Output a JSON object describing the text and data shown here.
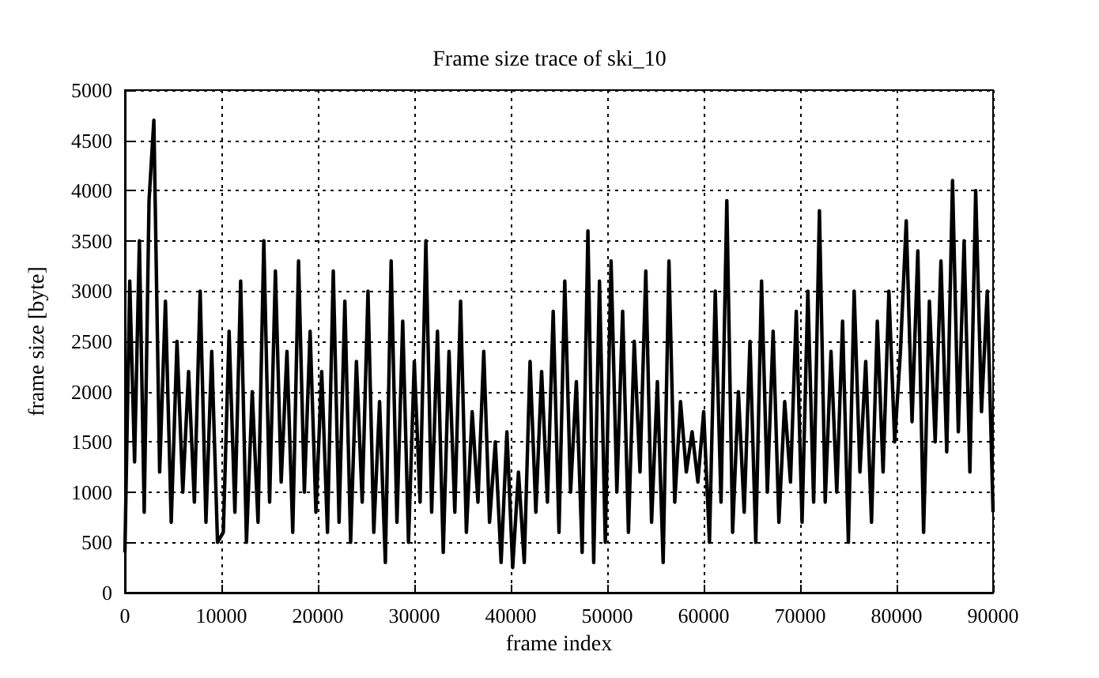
{
  "chart_data": {
    "type": "line",
    "title": "Frame size trace of ski_10",
    "xlabel": "frame index",
    "ylabel": "frame size [byte]",
    "x": [
      0,
      500,
      1000,
      1500,
      2000,
      2500,
      3000,
      3600,
      4200,
      4800,
      5400,
      6000,
      6600,
      7200,
      7800,
      8400,
      9000,
      9600,
      10200,
      10800,
      11400,
      12000,
      12600,
      13200,
      13800,
      14400,
      15000,
      15600,
      16200,
      16800,
      17400,
      18000,
      18600,
      19200,
      19800,
      20400,
      21000,
      21600,
      22200,
      22800,
      23400,
      24000,
      24600,
      25200,
      25800,
      26400,
      27000,
      27600,
      28200,
      28800,
      29400,
      30000,
      30600,
      31200,
      31800,
      32400,
      33000,
      33600,
      34200,
      34800,
      35400,
      36000,
      36600,
      37200,
      37800,
      38400,
      39000,
      39600,
      40200,
      40800,
      41400,
      42000,
      42600,
      43200,
      43800,
      44400,
      45000,
      45600,
      46200,
      46800,
      47400,
      48000,
      48600,
      49200,
      49800,
      50400,
      51000,
      51600,
      52200,
      52800,
      53400,
      54000,
      54600,
      55200,
      55800,
      56400,
      57000,
      57600,
      58200,
      58800,
      59400,
      60000,
      60600,
      61200,
      61800,
      62400,
      63000,
      63600,
      64200,
      64800,
      65400,
      66000,
      66600,
      67200,
      67800,
      68400,
      69000,
      69600,
      70200,
      70800,
      71400,
      72000,
      72600,
      73200,
      73800,
      74400,
      75000,
      75600,
      76200,
      76800,
      77400,
      78000,
      78600,
      79200,
      79800,
      80400,
      81000,
      81600,
      82200,
      82800,
      83400,
      84000,
      84600,
      85200,
      85800,
      86400,
      87000,
      87600,
      88200,
      88800,
      89400,
      90000
    ],
    "series": [
      {
        "color": "#000000",
        "values": [
          400,
          3100,
          1300,
          3500,
          800,
          3900,
          4700,
          1200,
          2900,
          700,
          2500,
          1000,
          2200,
          900,
          3000,
          700,
          2400,
          500,
          600,
          2600,
          800,
          3100,
          500,
          2000,
          700,
          3500,
          900,
          3200,
          1100,
          2400,
          600,
          3300,
          1000,
          2600,
          800,
          2200,
          600,
          3200,
          700,
          2900,
          500,
          2300,
          900,
          3000,
          600,
          1900,
          300,
          3300,
          700,
          2700,
          500,
          2300,
          900,
          3500,
          800,
          2600,
          400,
          2400,
          800,
          2900,
          600,
          1800,
          900,
          2400,
          700,
          1500,
          300,
          1600,
          250,
          1200,
          300,
          2300,
          800,
          2200,
          900,
          2800,
          600,
          3100,
          1000,
          2100,
          400,
          3600,
          300,
          3100,
          500,
          3300,
          1000,
          2800,
          600,
          2500,
          1200,
          3200,
          700,
          2100,
          300,
          3300,
          900,
          1900,
          1200,
          1600,
          1100,
          1800,
          500,
          3000,
          900,
          3900,
          600,
          2000,
          800,
          2500,
          500,
          3100,
          1000,
          2600,
          700,
          1900,
          1100,
          2800,
          700,
          3000,
          900,
          3800,
          900,
          2400,
          1000,
          2700,
          500,
          3000,
          1200,
          2300,
          700,
          2700,
          1200,
          3000,
          1500,
          2400,
          3700,
          1700,
          3400,
          600,
          2900,
          1500,
          3300,
          1400,
          4100,
          1600,
          3500,
          1200,
          4000,
          1800,
          3000,
          800
        ]
      }
    ],
    "xlim": [
      0,
      90000
    ],
    "xticks": [
      0,
      10000,
      20000,
      30000,
      40000,
      50000,
      60000,
      70000,
      80000,
      90000
    ],
    "ylim": [
      0,
      5000
    ],
    "yticks": [
      0,
      500,
      1000,
      1500,
      2000,
      2500,
      3000,
      3500,
      4000,
      4500,
      5000
    ],
    "grid": true,
    "marker": "none",
    "line_style": "solid"
  }
}
